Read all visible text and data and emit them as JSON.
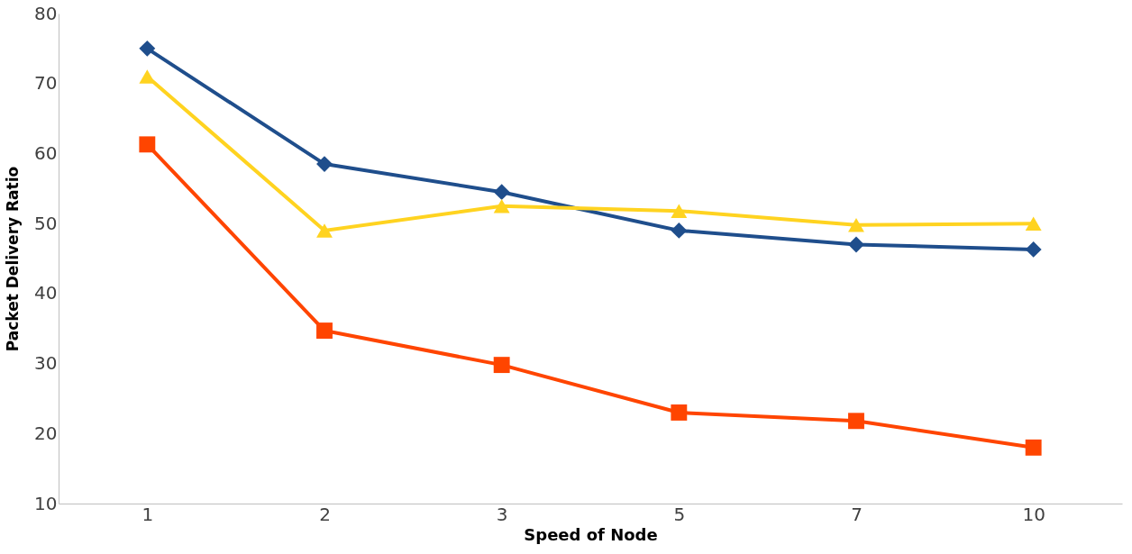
{
  "chart_data": {
    "type": "line",
    "xlabel": "Speed of Node",
    "ylabel": "Packet Delivery Ratio",
    "categories": [
      "1",
      "2",
      "3",
      "5",
      "7",
      "10"
    ],
    "series": [
      {
        "color": "#1f4e8c",
        "marker": "diamond",
        "values": [
          75,
          58.5,
          54.5,
          49,
          47,
          46.3
        ]
      },
      {
        "color": "#ff4500",
        "marker": "square",
        "values": [
          61.3,
          34.7,
          29.8,
          23,
          21.8,
          18
        ]
      },
      {
        "color": "#ffd320",
        "marker": "triangle",
        "values": [
          71,
          49,
          52.5,
          51.8,
          49.8,
          50
        ]
      }
    ],
    "ylim": [
      10,
      80
    ],
    "yticks": [
      10,
      20,
      30,
      40,
      50,
      60,
      70,
      80
    ],
    "grid": false
  }
}
